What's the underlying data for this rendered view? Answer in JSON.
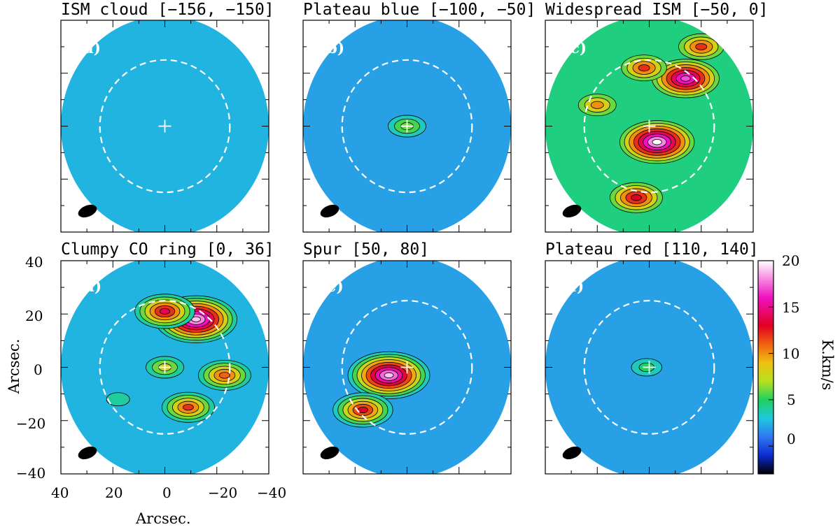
{
  "figure": {
    "xlabel": "Arcsec.",
    "ylabel": "Arcsec.",
    "colorbar": {
      "label": "K.km/s",
      "ticks": [
        "20",
        "15",
        "10",
        "5",
        "0"
      ],
      "tick_values": [
        20,
        15,
        10,
        5,
        0
      ],
      "range": [
        -3,
        20
      ]
    },
    "x_ticks": [
      "40",
      "20",
      "0",
      "−20",
      "−40"
    ],
    "y_ticks": [
      "40",
      "20",
      "0",
      "−20",
      "−40"
    ]
  },
  "panels": [
    {
      "id": "a",
      "title": "ISM cloud [−156, −150]",
      "tag": "(a)"
    },
    {
      "id": "b",
      "title": "Plateau blue [−100, −50]",
      "tag": "(b)"
    },
    {
      "id": "c",
      "title": "Widespread ISM [−50, 0]",
      "tag": "(c)"
    },
    {
      "id": "d",
      "title": "Clumpy CO ring [0, 36]",
      "tag": "(d)"
    },
    {
      "id": "e",
      "title": "Spur [50, 80]",
      "tag": "(e)"
    },
    {
      "id": "f",
      "title": "Plateau red [110, 140]",
      "tag": "(f)"
    }
  ],
  "chart_data": {
    "type": "heatmap",
    "x_range": [
      40,
      -40
    ],
    "y_range": [
      -40,
      40
    ],
    "z_range": [
      -3,
      20
    ],
    "z_unit": "K.km/s",
    "dashed_circle_radius": 25,
    "panels": [
      {
        "id": "a",
        "velocity_range": [
          -156,
          -150
        ],
        "background": 2.5,
        "peaks": []
      },
      {
        "id": "b",
        "velocity_range": [
          -100,
          -50
        ],
        "background": 2.0,
        "peaks": [
          {
            "x": 0,
            "y": 0,
            "value": 6
          }
        ]
      },
      {
        "id": "c",
        "velocity_range": [
          -50,
          0
        ],
        "background": 4.5,
        "peaks": [
          {
            "x": -3,
            "y": -6,
            "value": 20
          },
          {
            "x": -14,
            "y": 18,
            "value": 17
          },
          {
            "x": -20,
            "y": 30,
            "value": 12
          },
          {
            "x": 2,
            "y": 22,
            "value": 12
          },
          {
            "x": 20,
            "y": 8,
            "value": 10
          },
          {
            "x": 5,
            "y": -27,
            "value": 13
          }
        ]
      },
      {
        "id": "d",
        "velocity_range": [
          0,
          36
        ],
        "background": 2.5,
        "peaks": [
          {
            "x": -12,
            "y": 18,
            "value": 19
          },
          {
            "x": 0,
            "y": 21,
            "value": 14
          },
          {
            "x": 0,
            "y": 0,
            "value": 8
          },
          {
            "x": -23,
            "y": -3,
            "value": 11
          },
          {
            "x": -9,
            "y": -15,
            "value": 12
          },
          {
            "x": 18,
            "y": -12,
            "value": 4
          }
        ]
      },
      {
        "id": "e",
        "velocity_range": [
          50,
          80
        ],
        "background": 2.0,
        "peaks": [
          {
            "x": 7,
            "y": -3,
            "value": 19
          },
          {
            "x": 17,
            "y": -16,
            "value": 13
          }
        ]
      },
      {
        "id": "f",
        "velocity_range": [
          110,
          140
        ],
        "background": 2.0,
        "peaks": [
          {
            "x": 1,
            "y": 0,
            "value": 5
          }
        ]
      }
    ]
  },
  "colors": {
    "colormap": [
      "#000000",
      "#0a2bd0",
      "#2f78f0",
      "#1ec8dc",
      "#20d060",
      "#b8e020",
      "#f0c010",
      "#f06010",
      "#e00020",
      "#f010c0",
      "#ffffff"
    ],
    "axes": "#000000",
    "overlay": "#ffffff"
  }
}
